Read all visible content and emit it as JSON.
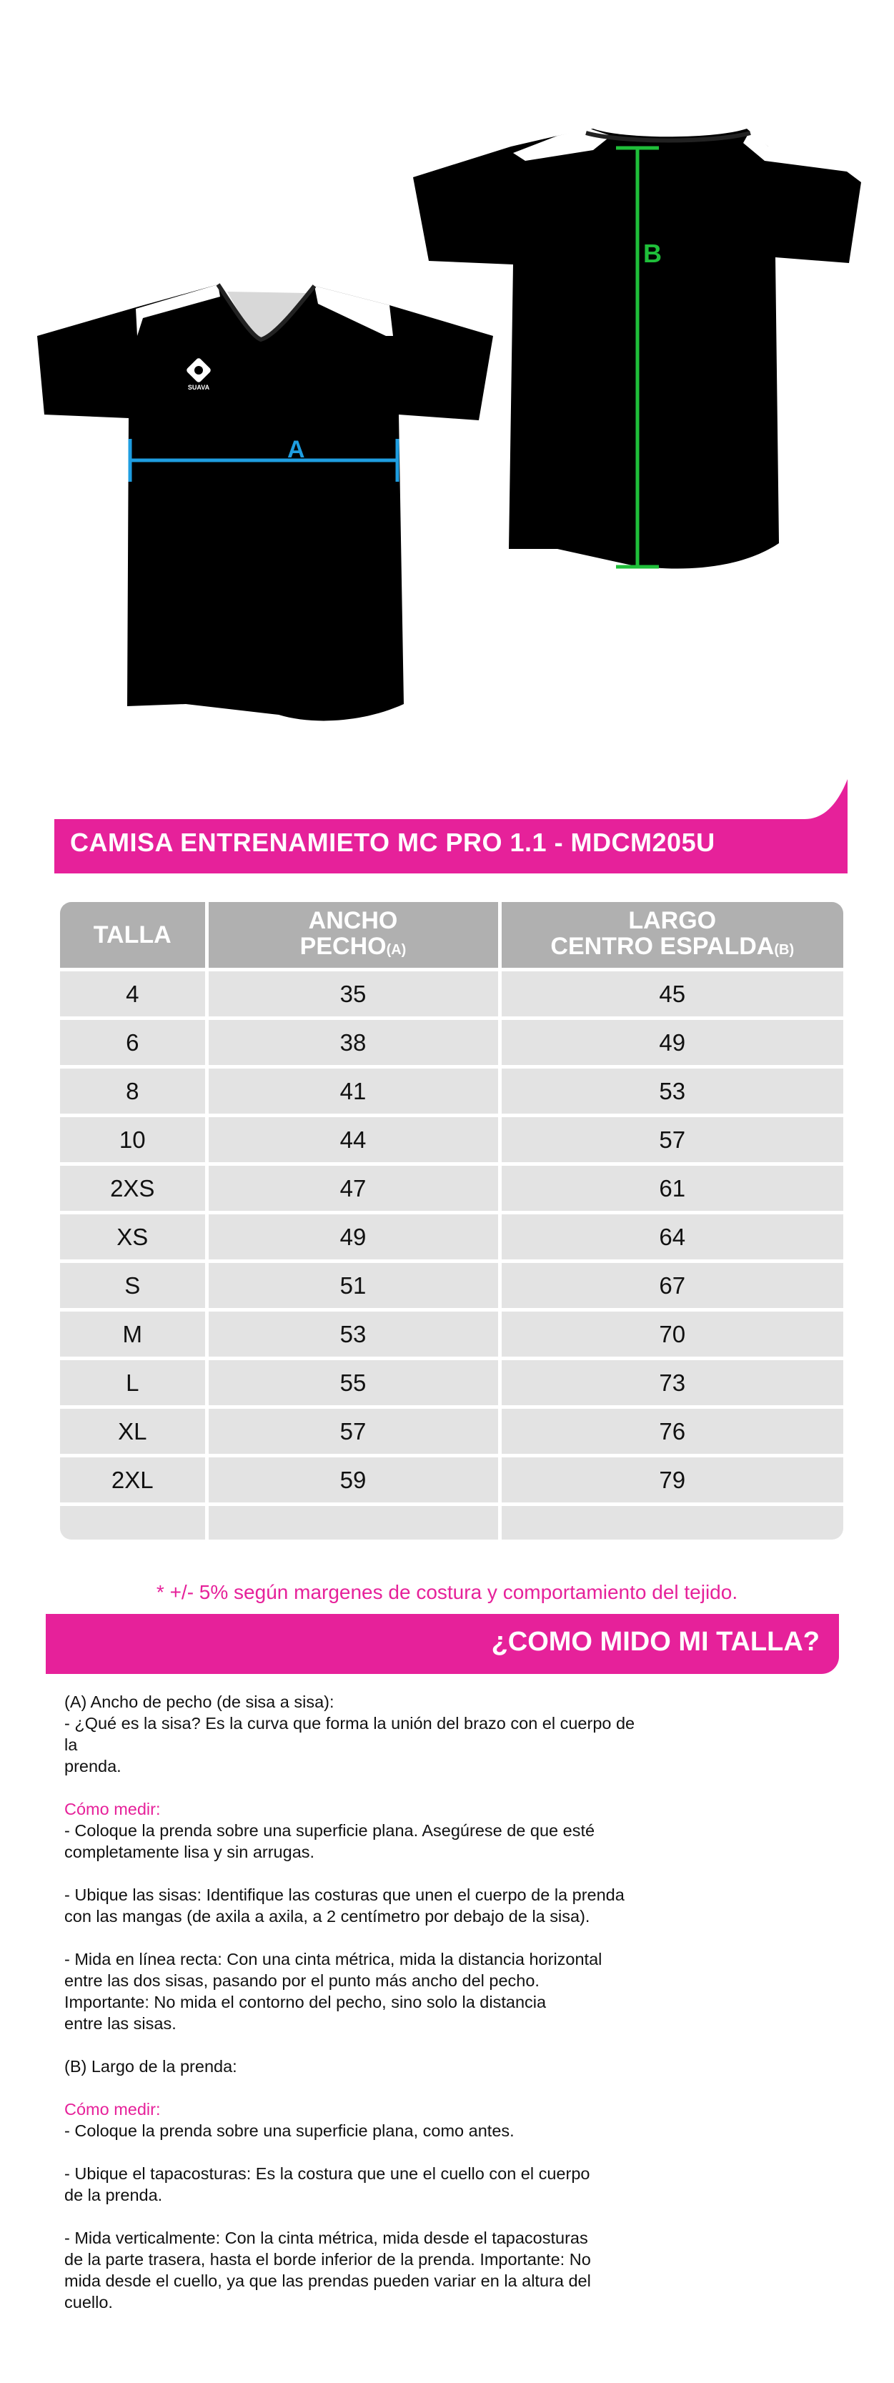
{
  "illustration": {
    "front_logo_text": "SUAVA",
    "measure_a_label": "A",
    "measure_b_label": "B",
    "colors": {
      "shirt": "#000000",
      "panel": "#ffffff",
      "a_line": "#1e9de0",
      "b_line": "#1fbf3a",
      "brand_pink": "#e6219a"
    }
  },
  "title": "CAMISA ENTRENAMIETO MC PRO 1.1 - MDCM205U",
  "table": {
    "headers": {
      "talla": "TALLA",
      "ancho_line1": "ANCHO",
      "ancho_line2": "PECHO",
      "ancho_suffix": "(A)",
      "largo_line1": "LARGO",
      "largo_line2": "CENTRO ESPALDA",
      "largo_suffix": "(B)"
    },
    "rows": [
      [
        "4",
        "35",
        "45"
      ],
      [
        "6",
        "38",
        "49"
      ],
      [
        "8",
        "41",
        "53"
      ],
      [
        "10",
        "44",
        "57"
      ],
      [
        "2XS",
        "47",
        "61"
      ],
      [
        "XS",
        "49",
        "64"
      ],
      [
        "S",
        "51",
        "67"
      ],
      [
        "M",
        "53",
        "70"
      ],
      [
        "L",
        "55",
        "73"
      ],
      [
        "XL",
        "57",
        "76"
      ],
      [
        "2XL",
        "59",
        "79"
      ],
      [
        "",
        "",
        ""
      ]
    ]
  },
  "note": "* +/- 5% según margenes de costura y comportamiento del tejido.",
  "how_title": "¿COMO MIDO MI TALLA?",
  "instructions": {
    "a_heading": "(A) Ancho de pecho (de sisa a sisa):",
    "a_sisa_1": "- ¿Qué es la sisa? Es la curva que forma la unión del brazo con el cuerpo de la",
    "a_sisa_2": "prenda.",
    "como_medir_1": "Cómo medir:",
    "a_step1_1": "- Coloque la prenda sobre una superficie plana. Asegúrese de que esté",
    "a_step1_2": "completamente lisa y sin arrugas.",
    "a_step2_1": "- Ubique las sisas: Identifique las costuras que unen el cuerpo de la prenda",
    "a_step2_2": "con las mangas (de axila a axila, a 2 centímetro por debajo de la sisa).",
    "a_step3_1": "- Mida en línea recta: Con una cinta métrica, mida la distancia horizontal",
    "a_step3_2": "entre las dos sisas, pasando por el punto más ancho del pecho.",
    "a_step3_3": "Importante: No mida el contorno del pecho, sino solo la distancia",
    "a_step3_4": "entre las sisas.",
    "b_heading": "(B) Largo de la prenda:",
    "como_medir_2": "Cómo medir:",
    "b_step1": "- Coloque la prenda sobre una superficie plana, como antes.",
    "b_step2_1": "- Ubique el tapacosturas: Es la costura que une el cuello con el cuerpo",
    "b_step2_2": "de la prenda.",
    "b_step3_1": "- Mida verticalmente: Con la cinta métrica, mida desde el tapacosturas",
    "b_step3_2": "de la parte trasera, hasta el borde inferior de la prenda. Importante: No",
    "b_step3_3": "mida desde el cuello, ya que las prendas pueden variar en la altura del",
    "b_step3_4": "cuello."
  }
}
